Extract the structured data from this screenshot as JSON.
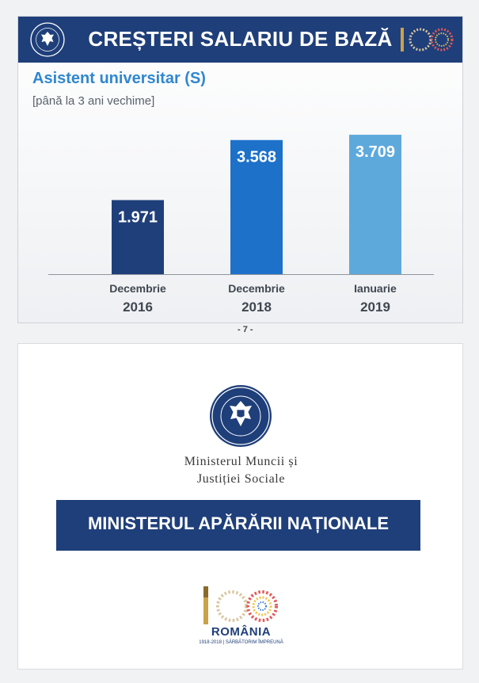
{
  "slide1": {
    "title": "CREȘTERI SALARIU DE BAZĂ",
    "subtitle": "Asistent universitar (S)",
    "note": "[până la 3 ani vechime]",
    "page_number": "- 7 -"
  },
  "chart_data": {
    "type": "bar",
    "categories": [
      {
        "line1": "Decembrie",
        "line2": "2016"
      },
      {
        "line1": "Decembrie",
        "line2": "2018"
      },
      {
        "line1": "Ianuarie",
        "line2": "2019"
      }
    ],
    "values": [
      1971,
      3568,
      3709
    ],
    "value_labels": [
      "1.971",
      "3.568",
      "3.709"
    ],
    "colors": [
      "#1f3f7a",
      "#1d71c9",
      "#5ea9dc"
    ],
    "ylim": [
      0,
      3900
    ],
    "grid": false,
    "legend": "none"
  },
  "slide2": {
    "ministry_line1": "Ministerul Muncii și",
    "ministry_line2": "Justiției Sociale",
    "band": "MINISTERUL APĂRĂRII NAȚIONALE",
    "romania": "ROMÂNIA",
    "tagline": "1918-2018 | SĂRBĂTORIM ÎMPREUNĂ"
  },
  "colors": {
    "navy": "#1f3f7a",
    "blue": "#1d71c9",
    "light_blue": "#5ea9dc",
    "subtitle_blue": "#2f87d0"
  },
  "icons": {
    "government_seal": "government-seal-icon",
    "centenary_logo": "centenary-100-icon"
  }
}
